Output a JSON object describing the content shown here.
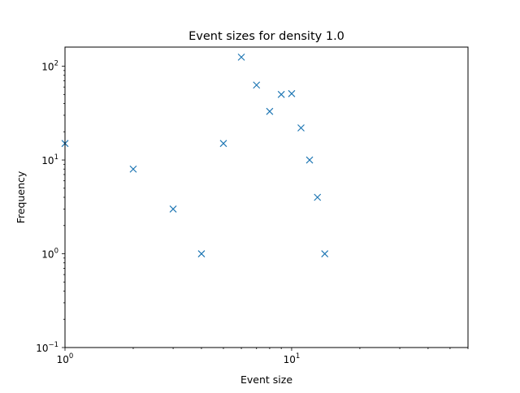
{
  "chart_data": {
    "type": "scatter",
    "title": "Event sizes for density 1.0",
    "xlabel": "Event size",
    "ylabel": "Frequency",
    "xscale": "log",
    "yscale": "log",
    "xlim": [
      1,
      60
    ],
    "ylim": [
      0.1,
      160
    ],
    "grid": false,
    "marker": "x",
    "color": "#1f77b4",
    "x_ticks": [
      {
        "value": 1,
        "base": "10",
        "exp": "0"
      },
      {
        "value": 10,
        "base": "10",
        "exp": "1"
      }
    ],
    "y_ticks": [
      {
        "value": 0.1,
        "base": "10",
        "exp": "−1"
      },
      {
        "value": 1,
        "base": "10",
        "exp": "0"
      },
      {
        "value": 10,
        "base": "10",
        "exp": "1"
      },
      {
        "value": 100,
        "base": "10",
        "exp": "2"
      }
    ],
    "series": [
      {
        "x": [
          1,
          2,
          3,
          4,
          5,
          6,
          7,
          8,
          9,
          10,
          11,
          12,
          13,
          14
        ],
        "y": [
          15,
          8,
          3,
          1,
          15,
          125,
          63,
          33,
          50,
          51,
          22,
          10,
          4,
          1
        ]
      }
    ]
  }
}
